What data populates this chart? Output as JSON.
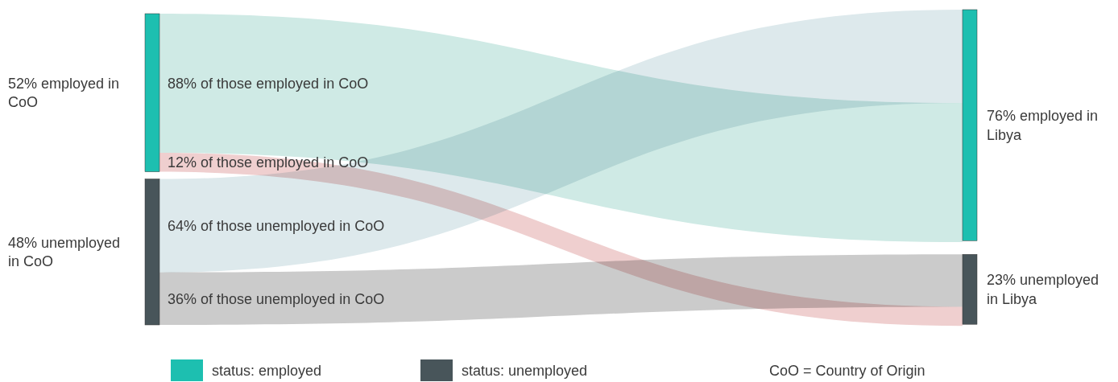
{
  "chart_data": {
    "type": "other",
    "categories": [
      "employed in CoO",
      "unemployed in CoO",
      "employed in Libya",
      "unemployed in Libya"
    ],
    "series": [
      {
        "name": "status: employed",
        "type": "bar",
        "color": "#1dbfb0",
        "values": [
          52,
          null,
          76,
          null
        ],
        "value_labels": [
          "52%",
          null,
          "76%",
          null
        ]
      },
      {
        "name": "status: unemployed",
        "type": "bar",
        "color": "#48555a",
        "values": [
          null,
          48,
          null,
          23
        ],
        "value_labels": [
          null,
          "48%",
          null,
          "23%"
        ]
      },
      {
        "name": "of those employed in CoO",
        "type": "other",
        "color": "#cfeae5",
        "values": [
          88,
          null,
          null,
          null
        ],
        "value_labels": [
          "88%",
          null,
          null,
          null
        ]
      },
      {
        "name": "of those employed in CoO",
        "type": "other",
        "color": "#efcfcf",
        "values": [
          12,
          null,
          null,
          null
        ],
        "value_labels": [
          "12%",
          null,
          null,
          null
        ]
      },
      {
        "name": "of those unemployed in CoO",
        "type": "other",
        "color": "#dde9ec",
        "values": [
          null,
          64,
          null,
          null
        ],
        "value_labels": [
          null,
          "64%",
          null,
          null
        ]
      },
      {
        "name": "of those unemployed in CoO",
        "type": "other",
        "color": "#cbcbcb",
        "values": [
          null,
          36,
          null,
          null
        ],
        "value_labels": [
          null,
          "36%",
          null,
          null
        ]
      }
    ],
    "legend": "bottom",
    "annotations": [
      "CoO = Country of Origin"
    ]
  }
}
